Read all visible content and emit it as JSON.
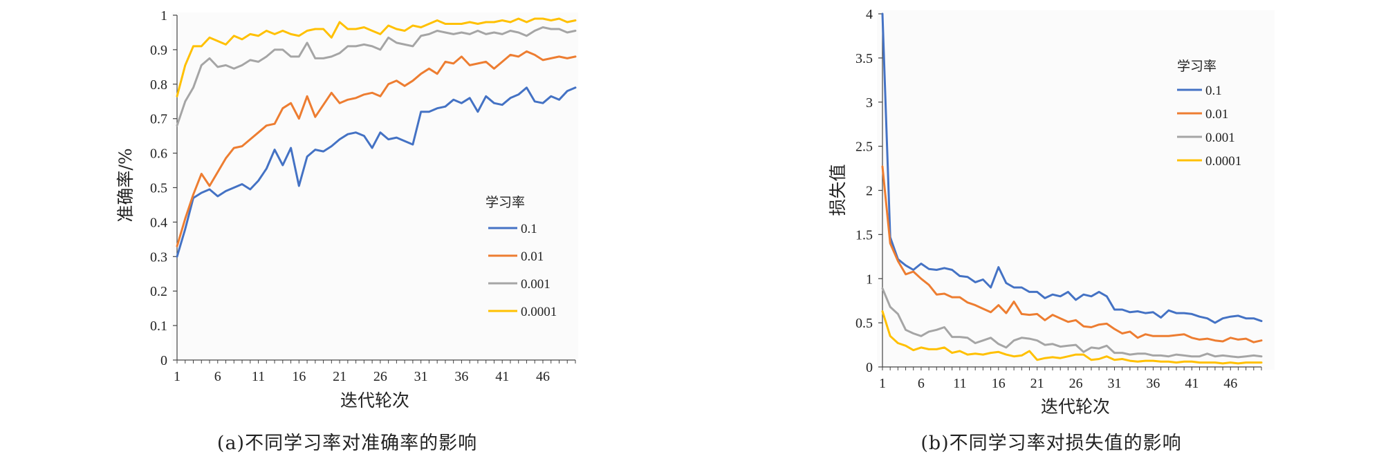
{
  "chart_data": [
    {
      "type": "line",
      "caption": "(a)不同学习率对准确率的影响",
      "xlabel": "迭代轮次",
      "ylabel": "准确率/%",
      "x": [
        1,
        2,
        3,
        4,
        5,
        6,
        7,
        8,
        9,
        10,
        11,
        12,
        13,
        14,
        15,
        16,
        17,
        18,
        19,
        20,
        21,
        22,
        23,
        24,
        25,
        26,
        27,
        28,
        29,
        30,
        31,
        32,
        33,
        34,
        35,
        36,
        37,
        38,
        39,
        40,
        41,
        42,
        43,
        44,
        45,
        46,
        47,
        48,
        49,
        50
      ],
      "xticks": [
        1,
        6,
        11,
        16,
        21,
        26,
        31,
        36,
        41,
        46
      ],
      "xlim": [
        1,
        50
      ],
      "ylim": [
        0,
        1
      ],
      "yticks": [
        0,
        0.1,
        0.2,
        0.3,
        0.4,
        0.5,
        0.6,
        0.7,
        0.8,
        0.9,
        1
      ],
      "ytick_labels": [
        "0",
        "0.1",
        "0.2",
        "0.3",
        "0.4",
        "0.5",
        "0.6",
        "0.7",
        "0.8",
        "0.9",
        "1"
      ],
      "grid": false,
      "legend_position": "center-right",
      "legend_title": "学习率",
      "series": [
        {
          "name": "0.1",
          "color": "#4472c4",
          "values": [
            0.3,
            0.38,
            0.47,
            0.485,
            0.495,
            0.475,
            0.49,
            0.5,
            0.51,
            0.495,
            0.52,
            0.555,
            0.61,
            0.565,
            0.615,
            0.505,
            0.59,
            0.61,
            0.605,
            0.62,
            0.64,
            0.655,
            0.66,
            0.65,
            0.615,
            0.66,
            0.64,
            0.645,
            0.635,
            0.625,
            0.72,
            0.72,
            0.73,
            0.735,
            0.755,
            0.745,
            0.76,
            0.72,
            0.765,
            0.745,
            0.74,
            0.76,
            0.77,
            0.79,
            0.75,
            0.745,
            0.765,
            0.755,
            0.78,
            0.79
          ]
        },
        {
          "name": "0.01",
          "color": "#ed7d31",
          "values": [
            0.33,
            0.41,
            0.48,
            0.54,
            0.505,
            0.545,
            0.585,
            0.615,
            0.62,
            0.64,
            0.66,
            0.68,
            0.685,
            0.73,
            0.745,
            0.7,
            0.765,
            0.705,
            0.74,
            0.775,
            0.745,
            0.755,
            0.76,
            0.77,
            0.775,
            0.765,
            0.8,
            0.81,
            0.795,
            0.81,
            0.83,
            0.845,
            0.83,
            0.865,
            0.86,
            0.88,
            0.855,
            0.86,
            0.865,
            0.845,
            0.865,
            0.885,
            0.88,
            0.895,
            0.885,
            0.87,
            0.875,
            0.88,
            0.875,
            0.88
          ]
        },
        {
          "name": "0.001",
          "color": "#a5a5a5",
          "values": [
            0.68,
            0.75,
            0.79,
            0.855,
            0.875,
            0.85,
            0.855,
            0.845,
            0.855,
            0.87,
            0.865,
            0.88,
            0.9,
            0.9,
            0.88,
            0.88,
            0.92,
            0.875,
            0.875,
            0.88,
            0.89,
            0.91,
            0.91,
            0.915,
            0.91,
            0.9,
            0.935,
            0.92,
            0.915,
            0.91,
            0.94,
            0.945,
            0.955,
            0.95,
            0.945,
            0.95,
            0.945,
            0.955,
            0.945,
            0.95,
            0.945,
            0.955,
            0.95,
            0.94,
            0.955,
            0.965,
            0.96,
            0.96,
            0.95,
            0.955
          ]
        },
        {
          "name": "0.0001",
          "color": "#ffc000",
          "values": [
            0.765,
            0.855,
            0.91,
            0.91,
            0.935,
            0.925,
            0.915,
            0.94,
            0.93,
            0.945,
            0.94,
            0.955,
            0.945,
            0.955,
            0.945,
            0.94,
            0.955,
            0.96,
            0.96,
            0.935,
            0.98,
            0.96,
            0.96,
            0.965,
            0.955,
            0.945,
            0.97,
            0.96,
            0.955,
            0.97,
            0.965,
            0.975,
            0.985,
            0.975,
            0.975,
            0.975,
            0.98,
            0.975,
            0.98,
            0.98,
            0.985,
            0.98,
            0.99,
            0.98,
            0.99,
            0.99,
            0.985,
            0.99,
            0.98,
            0.985
          ]
        }
      ]
    },
    {
      "type": "line",
      "caption": "(b)不同学习率对损失值的影响",
      "xlabel": "迭代轮次",
      "ylabel": "损失值",
      "x": [
        1,
        2,
        3,
        4,
        5,
        6,
        7,
        8,
        9,
        10,
        11,
        12,
        13,
        14,
        15,
        16,
        17,
        18,
        19,
        20,
        21,
        22,
        23,
        24,
        25,
        26,
        27,
        28,
        29,
        30,
        31,
        32,
        33,
        34,
        35,
        36,
        37,
        38,
        39,
        40,
        41,
        42,
        43,
        44,
        45,
        46,
        47,
        48,
        49,
        50
      ],
      "xticks": [
        1,
        6,
        11,
        16,
        21,
        26,
        31,
        36,
        41,
        46
      ],
      "xlim": [
        1,
        50
      ],
      "ylim": [
        0,
        4
      ],
      "yticks": [
        0,
        0.5,
        1,
        1.5,
        2,
        2.5,
        3,
        3.5,
        4
      ],
      "ytick_labels": [
        "0",
        "0.5",
        "1",
        "1.5",
        "2",
        "2.5",
        "3",
        "3.5",
        "4"
      ],
      "grid": false,
      "legend_position": "top-right",
      "legend_title": "学习率",
      "series": [
        {
          "name": "0.1",
          "color": "#4472c4",
          "values": [
            4.0,
            1.47,
            1.22,
            1.15,
            1.1,
            1.17,
            1.11,
            1.1,
            1.12,
            1.1,
            1.03,
            1.02,
            0.96,
            0.99,
            0.9,
            1.13,
            0.95,
            0.9,
            0.9,
            0.85,
            0.85,
            0.78,
            0.82,
            0.8,
            0.85,
            0.76,
            0.82,
            0.8,
            0.85,
            0.8,
            0.65,
            0.65,
            0.62,
            0.63,
            0.61,
            0.62,
            0.56,
            0.64,
            0.61,
            0.61,
            0.6,
            0.57,
            0.55,
            0.5,
            0.55,
            0.57,
            0.58,
            0.55,
            0.55,
            0.52
          ]
        },
        {
          "name": "0.01",
          "color": "#ed7d31",
          "values": [
            2.27,
            1.4,
            1.2,
            1.05,
            1.08,
            1.0,
            0.93,
            0.82,
            0.83,
            0.79,
            0.79,
            0.73,
            0.7,
            0.66,
            0.62,
            0.7,
            0.61,
            0.74,
            0.6,
            0.59,
            0.6,
            0.53,
            0.59,
            0.55,
            0.51,
            0.53,
            0.46,
            0.45,
            0.48,
            0.49,
            0.43,
            0.38,
            0.4,
            0.33,
            0.37,
            0.35,
            0.35,
            0.35,
            0.36,
            0.37,
            0.33,
            0.31,
            0.32,
            0.3,
            0.29,
            0.33,
            0.31,
            0.32,
            0.28,
            0.3
          ]
        },
        {
          "name": "0.001",
          "color": "#a5a5a5",
          "values": [
            0.89,
            0.68,
            0.6,
            0.42,
            0.38,
            0.35,
            0.4,
            0.42,
            0.45,
            0.34,
            0.34,
            0.33,
            0.27,
            0.3,
            0.33,
            0.26,
            0.22,
            0.3,
            0.33,
            0.32,
            0.3,
            0.25,
            0.26,
            0.23,
            0.24,
            0.25,
            0.17,
            0.22,
            0.21,
            0.24,
            0.16,
            0.16,
            0.14,
            0.15,
            0.15,
            0.13,
            0.13,
            0.12,
            0.14,
            0.13,
            0.12,
            0.12,
            0.15,
            0.12,
            0.13,
            0.12,
            0.11,
            0.12,
            0.13,
            0.12
          ]
        },
        {
          "name": "0.0001",
          "color": "#ffc000",
          "values": [
            0.63,
            0.35,
            0.27,
            0.24,
            0.19,
            0.22,
            0.2,
            0.2,
            0.22,
            0.16,
            0.18,
            0.14,
            0.15,
            0.14,
            0.16,
            0.17,
            0.14,
            0.12,
            0.13,
            0.18,
            0.08,
            0.1,
            0.11,
            0.1,
            0.12,
            0.14,
            0.14,
            0.08,
            0.09,
            0.12,
            0.08,
            0.09,
            0.07,
            0.06,
            0.07,
            0.07,
            0.06,
            0.06,
            0.05,
            0.06,
            0.06,
            0.05,
            0.05,
            0.05,
            0.04,
            0.05,
            0.04,
            0.05,
            0.05,
            0.05
          ]
        }
      ]
    }
  ]
}
